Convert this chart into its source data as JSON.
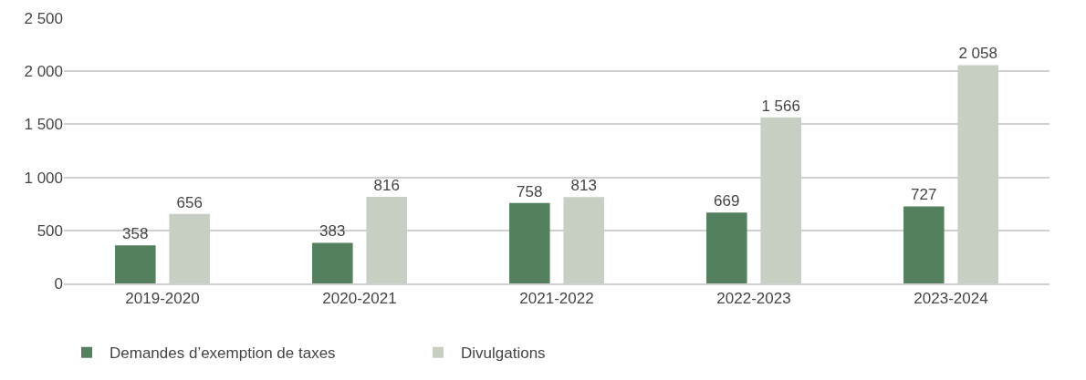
{
  "chart_data": {
    "type": "bar",
    "categories": [
      "2019-2020",
      "2020-2021",
      "2021-2022",
      "2022-2023",
      "2023-2024"
    ],
    "series": [
      {
        "name": "Demandes d’exemption de taxes",
        "color": "#55805f",
        "values": [
          358,
          383,
          758,
          669,
          727
        ],
        "value_labels": [
          "358",
          "383",
          "758",
          "669",
          "727"
        ]
      },
      {
        "name": "Divulgations",
        "color": "#c6cfc1",
        "values": [
          656,
          816,
          813,
          1566,
          2058
        ],
        "value_labels": [
          "656",
          "816",
          "813",
          "1 566",
          "2 058"
        ]
      }
    ],
    "ylim": [
      0,
      2500
    ],
    "yticks": [
      0,
      500,
      {
        "value": 1000,
        "label": "1 000"
      },
      {
        "value": 1500,
        "label": "1 500"
      },
      {
        "value": 2000,
        "label": "2 000"
      },
      {
        "value": 2500,
        "label": "2 500"
      }
    ],
    "grid": "y",
    "legend": "bottom left"
  }
}
